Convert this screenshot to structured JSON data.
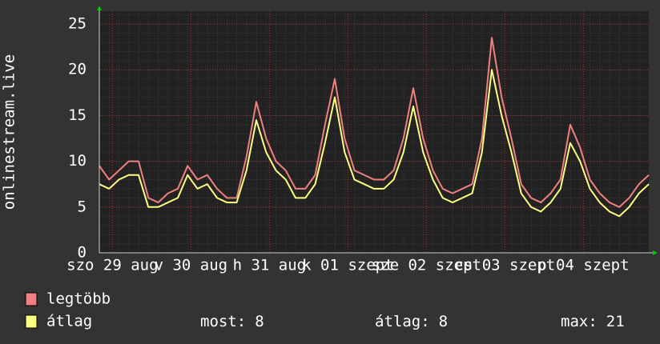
{
  "chart_data": {
    "type": "line",
    "y_label": "onlinestream.live",
    "xlim": [
      0,
      168
    ],
    "ylim": [
      0,
      26.4
    ],
    "yticks": [
      0,
      5,
      10,
      15,
      20,
      25
    ],
    "xticks": [
      {
        "value": 4,
        "label": "szo 29 aug"
      },
      {
        "value": 28,
        "label": "v 30 aug"
      },
      {
        "value": 52,
        "label": "h 31 aug"
      },
      {
        "value": 76,
        "label": "k 01 szept"
      },
      {
        "value": 100,
        "label": "sze 02 szept"
      },
      {
        "value": 124,
        "label": "cs 03 szept"
      },
      {
        "value": 148,
        "label": "p 04 szept"
      }
    ],
    "grid": true,
    "x": [
      0,
      3,
      6,
      9,
      12,
      15,
      18,
      21,
      24,
      27,
      30,
      33,
      36,
      39,
      42,
      45,
      48,
      51,
      54,
      57,
      60,
      63,
      66,
      69,
      72,
      75,
      78,
      81,
      84,
      87,
      90,
      93,
      96,
      99,
      102,
      105,
      108,
      111,
      114,
      117,
      120,
      123,
      126,
      129,
      132,
      135,
      138,
      141,
      144,
      147,
      150,
      153,
      156,
      159,
      162,
      165,
      168
    ],
    "series": [
      {
        "name": "legtöbb",
        "color": "#f08080",
        "values": [
          9.5,
          8,
          9,
          10,
          10,
          6,
          5.5,
          6.5,
          7,
          9.5,
          8,
          8.5,
          7,
          6,
          6,
          10.5,
          16.5,
          12.5,
          10,
          9,
          7,
          7,
          8.5,
          14,
          19,
          12.5,
          9,
          8.5,
          8,
          8,
          9,
          12.5,
          18,
          12.5,
          9,
          7,
          6.5,
          7,
          7.5,
          12.5,
          23.5,
          17,
          12.5,
          7.5,
          6,
          5.5,
          6.5,
          8,
          14,
          11.5,
          8,
          6.5,
          5.5,
          5,
          6,
          7.5,
          8.5
        ]
      },
      {
        "name": "átlag",
        "color": "#ffff80",
        "values": [
          7.5,
          7,
          8,
          8.5,
          8.5,
          5,
          5,
          5.5,
          6,
          8.5,
          7,
          7.5,
          6,
          5.5,
          5.5,
          9,
          14.5,
          11,
          9,
          8,
          6,
          6,
          7.5,
          12,
          17,
          11,
          8,
          7.5,
          7,
          7,
          8,
          11,
          16,
          11,
          8,
          6,
          5.5,
          6,
          6.5,
          11,
          20,
          15,
          11,
          6.5,
          5,
          4.5,
          5.5,
          7,
          12,
          10,
          7,
          5.5,
          4.5,
          4,
          5,
          6.5,
          7.5
        ]
      }
    ],
    "stats": [
      {
        "label": "most:",
        "value": 8
      },
      {
        "label": "átlag:",
        "value": 8
      },
      {
        "label": "max:",
        "value": 21
      }
    ]
  }
}
